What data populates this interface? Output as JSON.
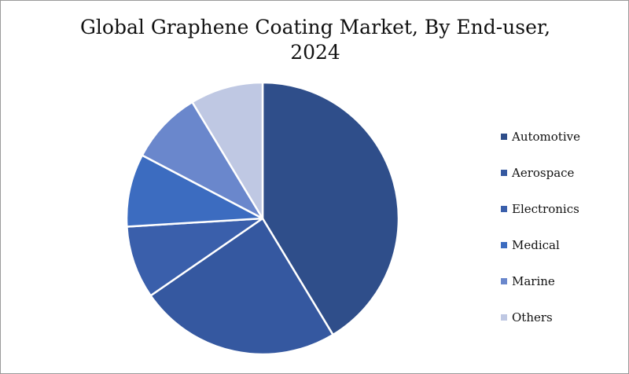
{
  "chart_data": {
    "type": "pie",
    "title_line1": "Global Graphene Coating Market, By End-user,",
    "title_line2": "2024",
    "legend_position": "right",
    "slices": [
      {
        "label": "Automotive",
        "value": 43,
        "color": "#2F4E8A"
      },
      {
        "label": "Aerospace",
        "value": 25,
        "color": "#3558A0"
      },
      {
        "label": "Electronics",
        "value": 9,
        "color": "#3A5FAB"
      },
      {
        "label": "Medical",
        "value": 9,
        "color": "#3C6CC0"
      },
      {
        "label": "Marine",
        "value": 9,
        "color": "#6A87CC"
      },
      {
        "label": "Others",
        "value": 9,
        "color": "#BFC8E3"
      }
    ]
  }
}
